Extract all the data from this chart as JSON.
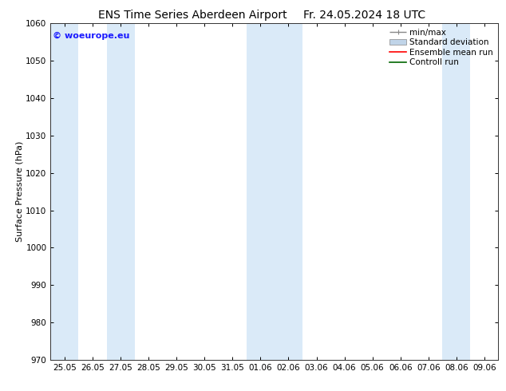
{
  "title_left": "ENS Time Series Aberdeen Airport",
  "title_right": "Fr. 24.05.2024 18 UTC",
  "ylabel": "Surface Pressure (hPa)",
  "ylim": [
    970,
    1060
  ],
  "yticks": [
    970,
    980,
    990,
    1000,
    1010,
    1020,
    1030,
    1040,
    1050,
    1060
  ],
  "xtick_labels": [
    "25.05",
    "26.05",
    "27.05",
    "28.05",
    "29.05",
    "30.05",
    "31.05",
    "01.06",
    "02.06",
    "03.06",
    "04.06",
    "05.06",
    "06.06",
    "07.06",
    "08.06",
    "09.06"
  ],
  "shaded_bands": [
    0,
    2,
    7,
    8,
    14
  ],
  "band_color": "#daeaf8",
  "background_color": "#ffffff",
  "copyright_text": "© woeurope.eu",
  "copyright_color": "#1a1aff",
  "legend_items": [
    {
      "label": "min/max",
      "color": "#888888",
      "type": "errorbar"
    },
    {
      "label": "Standard deviation",
      "color": "#c0d4e8",
      "type": "box"
    },
    {
      "label": "Ensemble mean run",
      "color": "#ff0000",
      "type": "line"
    },
    {
      "label": "Controll run",
      "color": "#006600",
      "type": "line"
    }
  ],
  "title_fontsize": 10,
  "axis_label_fontsize": 8,
  "tick_fontsize": 7.5,
  "legend_fontsize": 7.5,
  "figsize": [
    6.34,
    4.9
  ],
  "dpi": 100
}
